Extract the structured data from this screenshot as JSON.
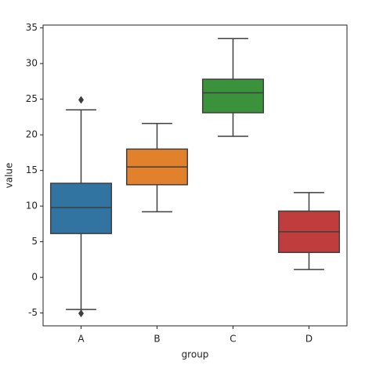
{
  "chart_data": {
    "type": "box",
    "x_label": "group",
    "y_label": "value",
    "categories": [
      "A",
      "B",
      "C",
      "D"
    ],
    "colors": [
      "#3274a1",
      "#e1812c",
      "#3a923a",
      "#c03d3e"
    ],
    "whisker_low": [
      -4.5,
      9.2,
      19.8,
      1.1
    ],
    "q1": [
      6.15,
      13.0,
      23.1,
      3.5
    ],
    "median": [
      9.8,
      15.5,
      25.9,
      6.4
    ],
    "q3": [
      13.2,
      18.0,
      27.8,
      9.3
    ],
    "whisker_high": [
      23.5,
      21.6,
      33.5,
      11.9
    ],
    "outliers": [
      [
        24.9,
        -5.05
      ],
      [],
      [],
      []
    ],
    "ylim": [
      -6.8,
      35.4
    ],
    "yticks": [
      -5,
      0,
      5,
      10,
      15,
      20,
      25,
      30,
      35
    ]
  }
}
